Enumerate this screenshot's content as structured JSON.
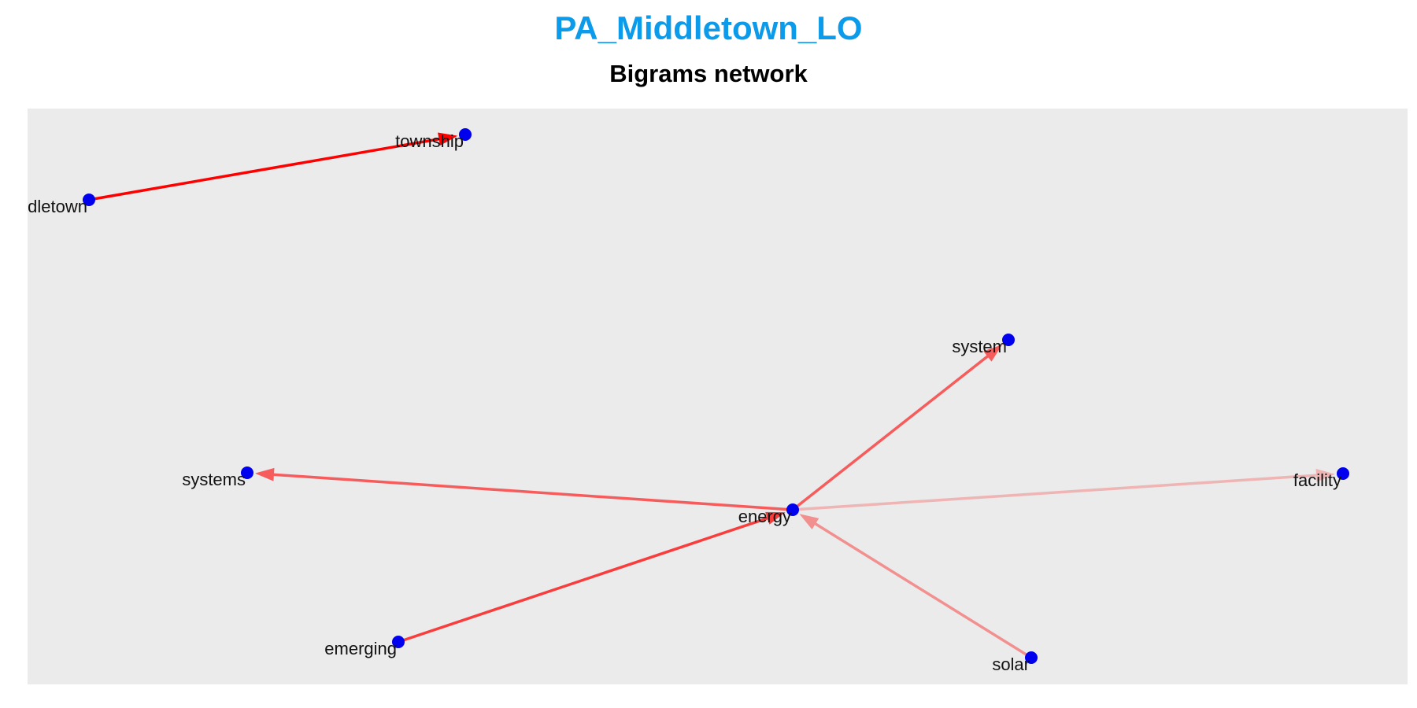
{
  "title": "PA_Middletown_LO",
  "subtitle": "Bigrams network",
  "colors": {
    "title": "#0B9BEA",
    "panel_background": "#EBEBEB",
    "node": "#0000EE",
    "edge": "#FF0000"
  },
  "nodes": [
    {
      "id": "township",
      "label": "township"
    },
    {
      "id": "middletown",
      "label": "dletown"
    },
    {
      "id": "system",
      "label": "system"
    },
    {
      "id": "systems",
      "label": "systems"
    },
    {
      "id": "facility",
      "label": "facility"
    },
    {
      "id": "energy",
      "label": "energy"
    },
    {
      "id": "emerging",
      "label": "emerging"
    },
    {
      "id": "solar",
      "label": "solar"
    }
  ],
  "edges": [
    {
      "from": "middletown",
      "to": "township",
      "weight": 1.0
    },
    {
      "from": "energy",
      "to": "system",
      "weight": 0.55
    },
    {
      "from": "energy",
      "to": "systems",
      "weight": 0.55
    },
    {
      "from": "energy",
      "to": "facility",
      "weight": 0.12
    },
    {
      "from": "emerging",
      "to": "energy",
      "weight": 0.7
    },
    {
      "from": "solar",
      "to": "energy",
      "weight": 0.3
    }
  ]
}
